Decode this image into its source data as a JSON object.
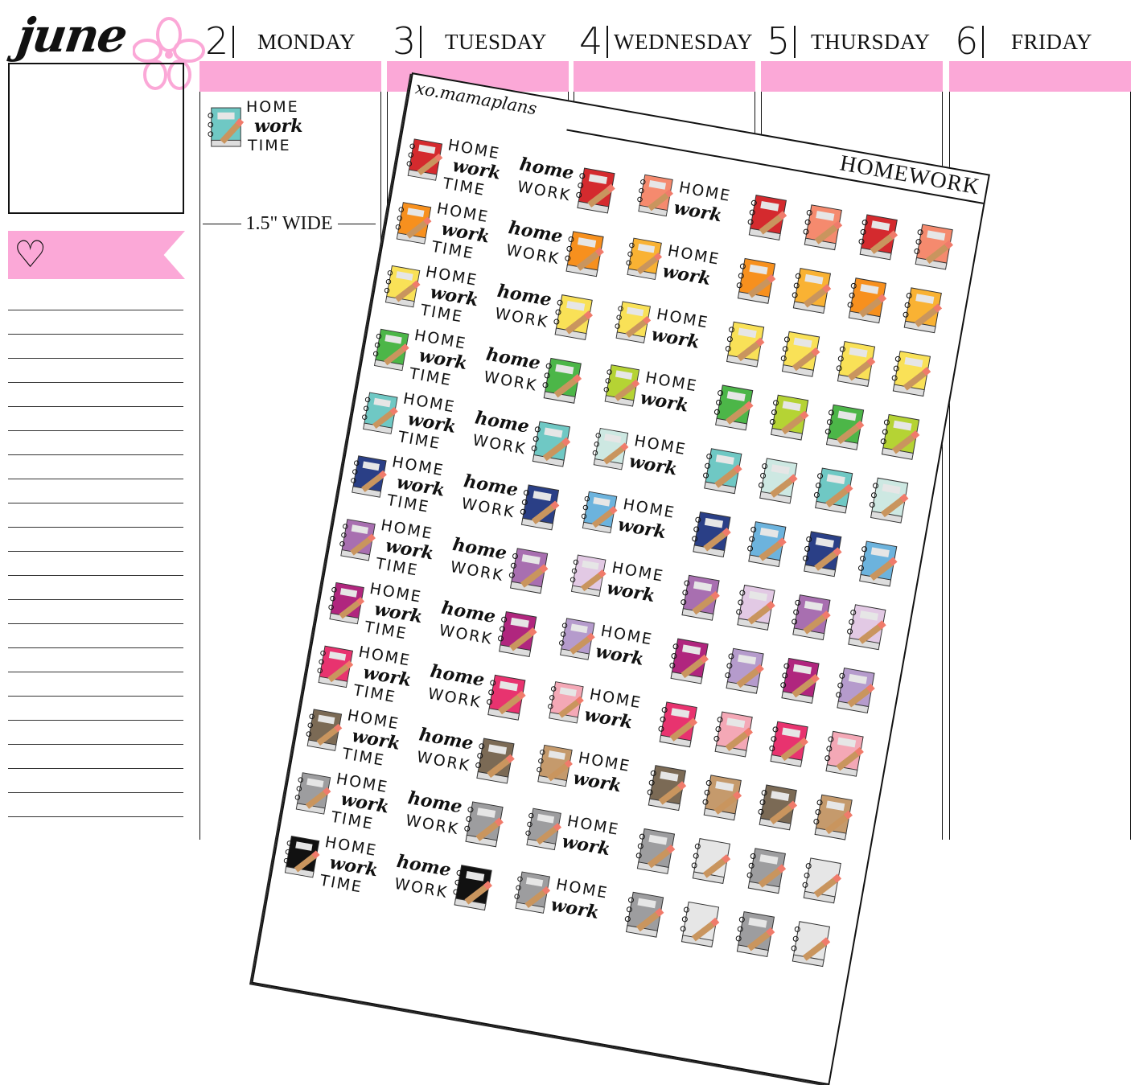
{
  "month": "june",
  "days": [
    {
      "num": "2",
      "name": "MONDAY"
    },
    {
      "num": "3",
      "name": "TUESDAY"
    },
    {
      "num": "4",
      "name": "WEDNESDAY"
    },
    {
      "num": "5",
      "name": "THURSDAY"
    },
    {
      "num": "6",
      "name": "FRIDAY"
    }
  ],
  "width_label": "1.5\" WIDE",
  "sheet": {
    "brand": "xo.mamaplans",
    "title": "HOMEWORK",
    "text": {
      "home_caps": "HOME",
      "work_script": "work",
      "time": "TIME",
      "home_script": "home",
      "work_caps": "WORK"
    },
    "rows": [
      {
        "main": "#d42a2e",
        "label": "#f58a6e",
        "small": [
          "#d42a2e",
          "#f58a6e",
          "#d42a2e",
          "#f58a6e"
        ]
      },
      {
        "main": "#f7901e",
        "label": "#f9b233",
        "small": [
          "#f7901e",
          "#f9b233",
          "#f7901e",
          "#f9b233"
        ]
      },
      {
        "main": "#f9e157",
        "label": "#f9e157",
        "small": [
          "#f9e157",
          "#f9e157",
          "#f9e157",
          "#f9e157"
        ]
      },
      {
        "main": "#4cb648",
        "label": "#b5d334",
        "small": [
          "#4cb648",
          "#b5d334",
          "#4cb648",
          "#b5d334"
        ]
      },
      {
        "main": "#6fc8c4",
        "label": "#cde8e2",
        "small": [
          "#6fc8c4",
          "#cde8e2",
          "#6fc8c4",
          "#cde8e2"
        ]
      },
      {
        "main": "#2a3f86",
        "label": "#6cb3dd",
        "small": [
          "#2a3f86",
          "#6cb3dd",
          "#2a3f86",
          "#6cb3dd"
        ]
      },
      {
        "main": "#a86fb0",
        "label": "#e2c9e4",
        "small": [
          "#a86fb0",
          "#e2c9e4",
          "#a86fb0",
          "#e2c9e4"
        ]
      },
      {
        "main": "#b0267e",
        "label": "#b59bcc",
        "small": [
          "#b0267e",
          "#b59bcc",
          "#b0267e",
          "#b59bcc"
        ]
      },
      {
        "main": "#e8336f",
        "label": "#f4a8b6",
        "small": [
          "#e8336f",
          "#f4a8b6",
          "#e8336f",
          "#f4a8b6"
        ]
      },
      {
        "main": "#7b6a55",
        "label": "#c59a6c",
        "small": [
          "#7b6a55",
          "#c59a6c",
          "#7b6a55",
          "#c59a6c"
        ]
      },
      {
        "main": "#9d9d9f",
        "label": "#9d9d9f",
        "small": [
          "#9d9d9f",
          "#e6e6e6",
          "#9d9d9f",
          "#e6e6e6"
        ]
      },
      {
        "main": "#111111",
        "label": "#9d9d9f",
        "small": [
          "#9d9d9f",
          "#e6e6e6",
          "#9d9d9f",
          "#e6e6e6"
        ]
      }
    ]
  },
  "colors": {
    "accent_pink": "#fba8d7",
    "sample_book": "#6fc8c4"
  }
}
